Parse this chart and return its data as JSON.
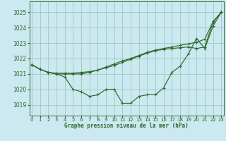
{
  "title": "Graphe pression niveau de la mer (hPa)",
  "bg_color": "#cce8f0",
  "grid_color": "#99ccbb",
  "line_color": "#2d6a2d",
  "x_ticks": [
    0,
    1,
    2,
    3,
    4,
    5,
    6,
    7,
    8,
    9,
    10,
    11,
    12,
    13,
    14,
    15,
    16,
    17,
    18,
    19,
    20,
    21,
    22,
    23
  ],
  "y_ticks": [
    1019,
    1020,
    1021,
    1022,
    1023,
    1024,
    1025
  ],
  "ylim": [
    1018.3,
    1025.7
  ],
  "xlim": [
    -0.3,
    23.3
  ],
  "series": [
    [
      1021.6,
      1021.3,
      1021.1,
      1021.0,
      1020.8,
      1020.0,
      1019.85,
      1019.55,
      1019.65,
      1020.0,
      1020.0,
      1019.1,
      1019.1,
      1019.55,
      1019.65,
      1019.65,
      1020.1,
      1021.1,
      1021.5,
      1022.3,
      1023.3,
      1022.65,
      1024.1,
      1025.0
    ],
    [
      1021.6,
      1021.3,
      1021.1,
      1021.05,
      1021.05,
      1021.05,
      1021.1,
      1021.15,
      1021.25,
      1021.4,
      1021.55,
      1021.75,
      1021.95,
      1022.15,
      1022.35,
      1022.5,
      1022.6,
      1022.65,
      1022.7,
      1022.75,
      1022.65,
      1022.75,
      1024.35,
      1025.0
    ],
    [
      1021.6,
      1021.3,
      1021.1,
      1021.0,
      1021.0,
      1021.0,
      1021.0,
      1021.1,
      1021.25,
      1021.45,
      1021.65,
      1021.85,
      1022.0,
      1022.2,
      1022.4,
      1022.55,
      1022.65,
      1022.75,
      1022.85,
      1022.95,
      1023.05,
      1023.25,
      1024.4,
      1025.0
    ]
  ]
}
